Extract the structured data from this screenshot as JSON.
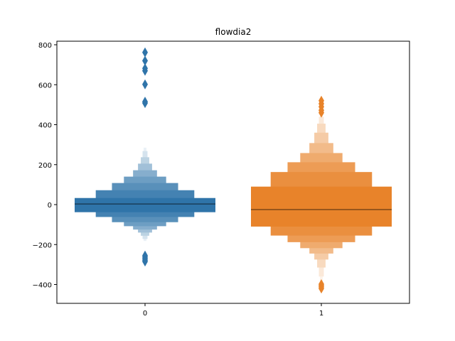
{
  "chart_data": {
    "type": "boxen",
    "title": "flowdia2",
    "xlabel": "",
    "ylabel": "",
    "ylim": [
      -490,
      820
    ],
    "yticks": [
      800,
      600,
      400,
      200,
      0,
      -200,
      -400
    ],
    "ytick_labels": [
      "800",
      "600",
      "400",
      "200",
      "0",
      "−200",
      "−400"
    ],
    "categories": [
      "0",
      "1"
    ],
    "grid": false,
    "series": [
      {
        "category": "0",
        "color": "#2f74a9",
        "median": 3,
        "boxes": [
          {
            "low": -38,
            "high": 33,
            "width_frac": 1.0,
            "lightness": 0.0
          },
          {
            "low": -62,
            "high": 72,
            "width_frac": 0.7,
            "lightness": 0.1
          },
          {
            "low": -88,
            "high": 108,
            "width_frac": 0.47,
            "lightness": 0.2
          },
          {
            "low": -108,
            "high": 140,
            "width_frac": 0.3,
            "lightness": 0.3
          },
          {
            "low": -125,
            "high": 172,
            "width_frac": 0.17,
            "lightness": 0.42
          },
          {
            "low": -140,
            "high": 205,
            "width_frac": 0.1,
            "lightness": 0.55
          },
          {
            "low": -156,
            "high": 237,
            "width_frac": 0.06,
            "lightness": 0.68
          },
          {
            "low": -172,
            "high": 268,
            "width_frac": 0.035,
            "lightness": 0.8
          },
          {
            "low": -182,
            "high": 285,
            "width_frac": 0.02,
            "lightness": 0.9
          }
        ],
        "outliers": [
          762,
          720,
          682,
          670,
          602,
          515,
          508,
          -255,
          -262,
          -270,
          -278,
          -285
        ]
      },
      {
        "category": "1",
        "color": "#e8832a",
        "median": -25,
        "boxes": [
          {
            "low": -110,
            "high": 90,
            "width_frac": 1.0,
            "lightness": 0.0
          },
          {
            "low": -155,
            "high": 163,
            "width_frac": 0.72,
            "lightness": 0.1
          },
          {
            "low": -188,
            "high": 212,
            "width_frac": 0.48,
            "lightness": 0.2
          },
          {
            "low": -218,
            "high": 258,
            "width_frac": 0.3,
            "lightness": 0.32
          },
          {
            "low": -245,
            "high": 308,
            "width_frac": 0.17,
            "lightness": 0.45
          },
          {
            "low": -275,
            "high": 360,
            "width_frac": 0.1,
            "lightness": 0.58
          },
          {
            "low": -315,
            "high": 405,
            "width_frac": 0.06,
            "lightness": 0.7
          },
          {
            "low": -360,
            "high": 440,
            "width_frac": 0.035,
            "lightness": 0.82
          },
          {
            "low": -390,
            "high": 455,
            "width_frac": 0.02,
            "lightness": 0.9
          }
        ],
        "outliers": [
          520,
          505,
          490,
          472,
          460,
          -398,
          -405,
          -412,
          -420
        ]
      }
    ]
  }
}
